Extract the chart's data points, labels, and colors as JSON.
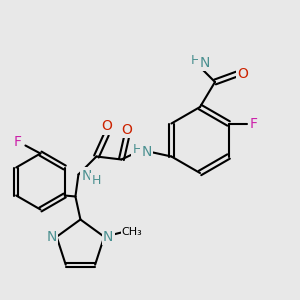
{
  "bg_color": "#e8e8e8",
  "bond_color": "#000000",
  "bond_lw": 1.5,
  "atom_colors": {
    "N": "#4a9090",
    "O": "#cc2200",
    "F": "#cc22aa",
    "C": "#000000",
    "H": "#4a9090"
  },
  "font_size": 9
}
